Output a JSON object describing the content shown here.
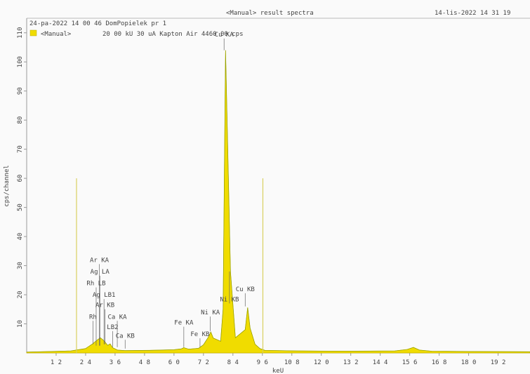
{
  "header": {
    "title": "<Manual> result spectra",
    "date": "14-lis-2022 14 31 19",
    "sample": "24-pa-2022 14 00 46 DomPopielek pr 1",
    "legend_name": "<Manual>",
    "legend_info": "20 00 kU   30 uA Kapton      Air 4460 00 cps"
  },
  "chart_data": {
    "type": "area",
    "title": "<Manual> result spectra",
    "xlabel": "keU",
    "ylabel": "cps/channel",
    "xlim": [
      0.0,
      20.5
    ],
    "ylim": [
      0,
      115
    ],
    "xticks": [
      "1.2",
      "2.4",
      "3.6",
      "4.8",
      "6.0",
      "7.2",
      "8.4",
      "9.6",
      "10.8",
      "12.0",
      "13.2",
      "14.4",
      "15.6",
      "16.8",
      "18.0",
      "19.2"
    ],
    "xtick_labels": [
      "1 2",
      "2 4",
      "3 6",
      "4 8",
      "6 0",
      "7 2",
      "8 4",
      "9 6",
      "10 8",
      "12 0",
      "13 2",
      "14 4",
      "15 6",
      "16 8",
      "18 0",
      "19 2"
    ],
    "yticks": [
      10,
      20,
      30,
      40,
      50,
      60,
      70,
      80,
      90,
      100,
      110
    ],
    "legend": "top-left",
    "series": [
      {
        "name": "<Manual>",
        "color": "#f0dc00",
        "x": [
          0.0,
          1.0,
          1.8,
          2.4,
          2.7,
          2.85,
          3.0,
          3.15,
          3.3,
          3.4,
          3.5,
          3.7,
          4.0,
          5.0,
          6.0,
          6.3,
          6.4,
          6.6,
          7.0,
          7.2,
          7.4,
          7.5,
          7.6,
          7.9,
          8.0,
          8.1,
          8.3,
          8.5,
          8.9,
          9.0,
          9.1,
          9.3,
          9.5,
          9.7,
          11.0,
          13.0,
          15.0,
          15.5,
          15.75,
          16.0,
          16.5,
          18.0,
          20.5
        ],
        "y": [
          0.3,
          0.5,
          0.7,
          1.5,
          3.2,
          4.3,
          5.2,
          4.2,
          2.6,
          3.1,
          1.8,
          1.0,
          0.8,
          0.9,
          1.1,
          1.4,
          1.8,
          1.3,
          1.6,
          2.8,
          5.4,
          7.2,
          5.1,
          4.0,
          15.0,
          104.0,
          28.0,
          5.2,
          8.0,
          15.6,
          8.5,
          3.0,
          1.5,
          0.9,
          0.7,
          0.6,
          0.7,
          1.2,
          1.9,
          1.0,
          0.6,
          0.5,
          0.4
        ]
      }
    ],
    "markers": [
      {
        "x": 2.03,
        "height": 60
      },
      {
        "x": 9.62,
        "height": 60
      }
    ],
    "peak_labels": [
      {
        "text": "Ar KA",
        "x": 2.96,
        "y": 2.5,
        "ly": 31
      },
      {
        "text": "Ag LA",
        "x": 2.98,
        "y": 2.5,
        "ly": 27
      },
      {
        "text": "Rh LB",
        "x": 2.83,
        "y": 2.5,
        "ly": 23
      },
      {
        "text": "Ag LB1",
        "x": 3.15,
        "y": 3.0,
        "ly": 19
      },
      {
        "text": "Ar KB",
        "x": 3.19,
        "y": 3.0,
        "ly": 15.5
      },
      {
        "text": "Rh",
        "x": 2.7,
        "y": 3.0,
        "ly": 11.5
      },
      {
        "text": "Ca KA",
        "x": 3.69,
        "y": 2.0,
        "ly": 11.5
      },
      {
        "text": "LB2",
        "x": 3.5,
        "y": 2.0,
        "ly": 8
      },
      {
        "text": "Ca KB",
        "x": 4.01,
        "y": 1.5,
        "ly": 5
      },
      {
        "text": "Fe KA",
        "x": 6.4,
        "y": 2.0,
        "ly": 9.5
      },
      {
        "text": "Fe KB",
        "x": 7.06,
        "y": 2.0,
        "ly": 5.5
      },
      {
        "text": "Ni KA",
        "x": 7.48,
        "y": 7.5,
        "ly": 13
      },
      {
        "text": "Ni KB",
        "x": 8.26,
        "y": 28,
        "ly": 17.5
      },
      {
        "text": "Cu KA",
        "x": 8.04,
        "y": 104,
        "ly": 108.5
      },
      {
        "text": "Cu KB",
        "x": 8.9,
        "y": 16,
        "ly": 21
      }
    ]
  }
}
